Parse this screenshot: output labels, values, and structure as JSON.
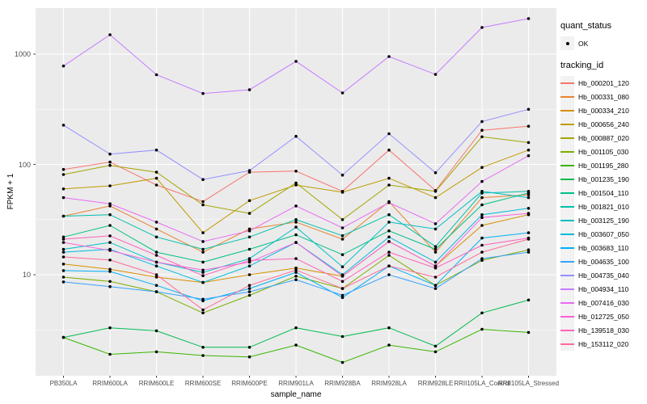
{
  "figure": {
    "y_axis_title": "FPKM + 1",
    "x_axis_title": "sample_name"
  },
  "legend": {
    "quant_status_title": "quant_status",
    "quant_status_items": [
      {
        "label": "OK",
        "marker": "point"
      }
    ],
    "tracking_id_title": "tracking_id"
  },
  "colors": {
    "panel_bg": "#EBEBEB",
    "gridline": "#FFFFFF",
    "tick_label": "#4D4D4D",
    "tick_mark": "#333333",
    "point": "#000000",
    "legend_key_bg": "#F2F2F2"
  },
  "chart_data": {
    "type": "line",
    "title": "",
    "xlabel": "sample_name",
    "ylabel": "FPKM + 1",
    "y_scale": "log10",
    "ylim": [
      1.2,
      2600
    ],
    "y_major_ticks": [
      1000,
      100,
      10
    ],
    "y_minor_gridlines": [
      3.162,
      31.62,
      316.2
    ],
    "grid": true,
    "legend_position": "right",
    "point_marker": {
      "shape": "circle",
      "color": "#000000",
      "legend_label": "OK"
    },
    "categories": [
      "PB350LA",
      "RRIM600LA",
      "RRIM600LE",
      "RRIM600SE",
      "RRIM600PE",
      "RRIM901LA",
      "RRIM928BA",
      "RRIM928LA",
      "RRIM928LE",
      "RRII105LA_Control",
      "RRII105LA_Stressed"
    ],
    "series": [
      {
        "name": "Hb_000201_120",
        "color": "#F8766D",
        "values": [
          90,
          105,
          65,
          46,
          85,
          87,
          57,
          135,
          58,
          204,
          222
        ]
      },
      {
        "name": "Hb_000331_080",
        "color": "#EA8331",
        "values": [
          34,
          42,
          26,
          16,
          26,
          30,
          21,
          46,
          16,
          50,
          53
        ]
      },
      {
        "name": "Hb_000334_210",
        "color": "#D89000",
        "values": [
          12.5,
          11.2,
          9.5,
          8.5,
          10,
          11.5,
          9.7,
          20,
          12,
          28,
          35
        ]
      },
      {
        "name": "Hb_000656_240",
        "color": "#C09B00",
        "values": [
          60,
          64,
          75,
          24,
          47,
          65,
          56,
          75,
          50,
          94,
          135
        ]
      },
      {
        "name": "Hb_000887_020",
        "color": "#A3A500",
        "values": [
          81,
          98,
          85,
          43,
          36,
          68,
          31.6,
          65,
          57,
          178,
          158
        ]
      },
      {
        "name": "Hb_001105_030",
        "color": "#7CAE00",
        "values": [
          9.5,
          8.7,
          7,
          4.5,
          6.5,
          9.7,
          7.5,
          15,
          8,
          13.5,
          16.8
        ]
      },
      {
        "name": "Hb_001195_280",
        "color": "#39B600",
        "values": [
          2.7,
          1.9,
          2,
          1.85,
          1.8,
          2.3,
          1.6,
          2.3,
          2,
          3.2,
          3
        ]
      },
      {
        "name": "Hb_001235_190",
        "color": "#00BB4E",
        "values": [
          2.7,
          3.3,
          3.1,
          2.2,
          2.2,
          3.3,
          2.75,
          3.3,
          2.25,
          4.5,
          5.9
        ]
      },
      {
        "name": "Hb_001504_110",
        "color": "#00C087",
        "values": [
          22,
          28,
          16,
          13,
          17,
          23,
          15.2,
          25,
          17,
          43,
          55
        ]
      },
      {
        "name": "Hb_001821_010",
        "color": "#00C1A9",
        "values": [
          34,
          35,
          22,
          17,
          22,
          31.6,
          22.6,
          35,
          18,
          55,
          57
        ]
      },
      {
        "name": "Hb_003125_190",
        "color": "#00BFC4",
        "values": [
          17,
          19.6,
          13,
          10.5,
          14,
          27,
          11.8,
          30,
          26,
          57,
          50
        ]
      },
      {
        "name": "Hb_003607_050",
        "color": "#00BAE0",
        "values": [
          16,
          17,
          12,
          8.5,
          12,
          19.6,
          10,
          22,
          13,
          35,
          40
        ]
      },
      {
        "name": "Hb_003683_110",
        "color": "#00B0F6",
        "values": [
          10.9,
          10.7,
          8,
          5.8,
          7.5,
          10.5,
          6.2,
          12,
          8,
          21.5,
          24
        ]
      },
      {
        "name": "Hb_004635_100",
        "color": "#35A2FF",
        "values": [
          8.6,
          7.8,
          7,
          6,
          7,
          9,
          6.5,
          10,
          7.5,
          14,
          16
        ]
      },
      {
        "name": "Hb_004735_040",
        "color": "#9590FF",
        "values": [
          227,
          124,
          135,
          73,
          88,
          180,
          80,
          190,
          84,
          245,
          316
        ]
      },
      {
        "name": "Hb_004934_110",
        "color": "#C77CFF",
        "values": [
          780,
          1500,
          650,
          440,
          475,
          860,
          445,
          950,
          655,
          1745,
          2100
        ]
      },
      {
        "name": "Hb_007416_030",
        "color": "#E76BF3",
        "values": [
          50,
          44,
          30,
          20,
          25,
          42,
          26.6,
          45,
          29,
          70,
          120
        ]
      },
      {
        "name": "Hb_012725_050",
        "color": "#FA62DB",
        "values": [
          19.6,
          16.6,
          13,
          11,
          13,
          19.6,
          9.7,
          20,
          12,
          33,
          36
        ]
      },
      {
        "name": "Hb_139518_030",
        "color": "#FF62BC",
        "values": [
          21,
          22.5,
          15,
          9.8,
          13.5,
          14,
          8.7,
          16,
          11.5,
          18.5,
          21.5
        ]
      },
      {
        "name": "Hb_153112_020",
        "color": "#FF6A98",
        "values": [
          14.5,
          13.6,
          10,
          4.8,
          8,
          11,
          7.5,
          12,
          9.5,
          16,
          21
        ]
      }
    ]
  }
}
